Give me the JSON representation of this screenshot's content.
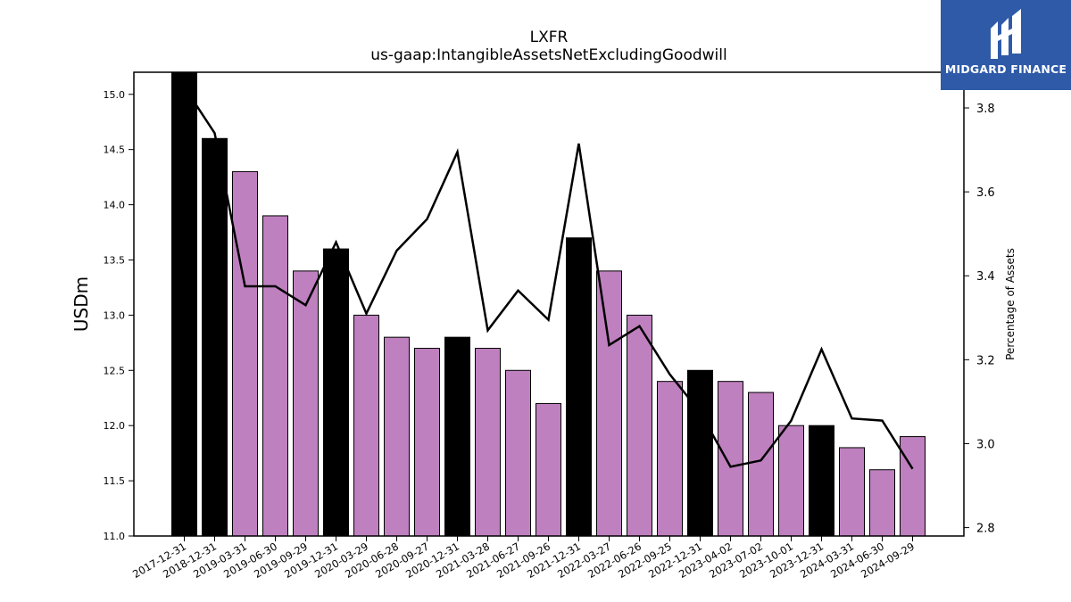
{
  "brand": {
    "name": "MIDGARD FINANCE",
    "logo_icon": "midgard-logo-icon",
    "color": "#2f5aa8"
  },
  "chart_data": {
    "type": "bar",
    "title": "LXFR",
    "subtitle": "us-gaap:IntangibleAssetsNetExcludingGoodwill",
    "ylabel": "USDm",
    "y2label": "Percentage of Assets",
    "ylim": [
      11.0,
      15.2
    ],
    "y2lim": [
      2.78,
      3.885
    ],
    "yticks": [
      "11.0",
      "11.5",
      "12.0",
      "12.5",
      "13.0",
      "13.5",
      "14.0",
      "14.5",
      "15.0"
    ],
    "y2ticks": [
      "2.8",
      "3.0",
      "3.2",
      "3.4",
      "3.6",
      "3.8"
    ],
    "categories": [
      "2017-12-31",
      "2018-12-31",
      "2019-03-31",
      "2019-06-30",
      "2019-09-29",
      "2019-12-31",
      "2020-03-29",
      "2020-06-28",
      "2020-09-27",
      "2020-12-31",
      "2021-03-28",
      "2021-06-27",
      "2021-09-26",
      "2021-12-31",
      "2022-03-27",
      "2022-06-26",
      "2022-09-25",
      "2022-12-31",
      "2023-04-02",
      "2023-07-02",
      "2023-10-01",
      "2023-12-31",
      "2024-03-31",
      "2024-06-30",
      "2024-09-29"
    ],
    "series": [
      {
        "kind": "bar",
        "values": [
          15.2,
          14.6,
          14.3,
          13.9,
          13.4,
          13.6,
          13.0,
          12.8,
          12.7,
          12.8,
          12.7,
          12.5,
          12.2,
          13.7,
          13.4,
          13.0,
          12.4,
          12.5,
          12.4,
          12.3,
          12.0,
          12.0,
          11.8,
          11.6,
          11.9
        ],
        "annual": [
          true,
          true,
          false,
          false,
          false,
          true,
          false,
          false,
          false,
          true,
          false,
          false,
          false,
          true,
          false,
          false,
          false,
          true,
          false,
          false,
          false,
          true,
          false,
          false,
          false
        ],
        "annual_color": "#000000",
        "quarter_color": "#bf80bf"
      },
      {
        "kind": "line",
        "axis": "right",
        "color": "#000000",
        "values": [
          3.85,
          3.74,
          3.375,
          3.375,
          3.33,
          3.48,
          3.31,
          3.46,
          3.535,
          3.695,
          3.27,
          3.365,
          3.295,
          3.715,
          3.235,
          3.28,
          3.165,
          3.075,
          2.945,
          2.96,
          3.055,
          3.225,
          3.06,
          3.055,
          2.94
        ]
      }
    ],
    "grid": false,
    "legend": "none"
  }
}
